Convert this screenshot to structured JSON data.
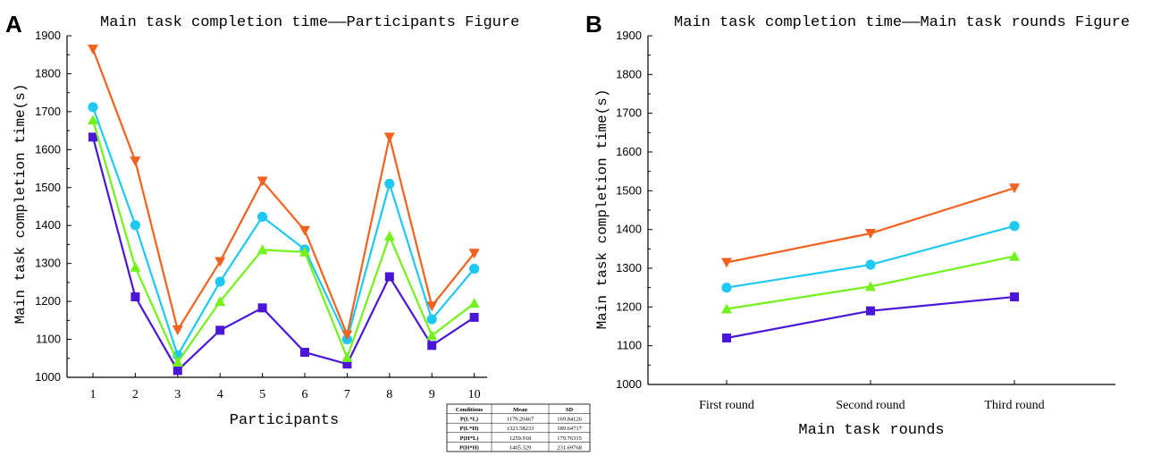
{
  "chart_data": [
    {
      "panel_letter": "A",
      "type": "line",
      "title": "Main task completion time——Participants Figure",
      "xlabel": "Participants",
      "ylabel": "Main task completion time(s)",
      "categories": [
        "1",
        "2",
        "3",
        "4",
        "5",
        "6",
        "7",
        "8",
        "9",
        "10"
      ],
      "ylim": [
        1000,
        1900
      ],
      "yticks": [
        "1000",
        "1100",
        "1200",
        "1300",
        "1400",
        "1500",
        "1600",
        "1700",
        "1800",
        "1900"
      ],
      "grid": false,
      "legend_position": "bottom",
      "series": [
        {
          "name": "P_L*L",
          "label_main": "P",
          "label_sub": "L*L",
          "color": "#4b16d8",
          "marker": "square",
          "values": [
            1633,
            1212,
            1018,
            1124,
            1183,
            1066,
            1035,
            1265,
            1084,
            1158
          ]
        },
        {
          "name": "P_L*H",
          "label_main": "P",
          "label_sub": "L*H",
          "color": "#1ec8f0",
          "marker": "circle",
          "values": [
            1712,
            1401,
            1058,
            1252,
            1423,
            1337,
            1100,
            1510,
            1153,
            1286
          ]
        },
        {
          "name": "P_H*L",
          "label_main": "P",
          "label_sub": "H*L",
          "color": "#72f21a",
          "marker": "triangle-up",
          "values": [
            1678,
            1290,
            1040,
            1200,
            1336,
            1330,
            1052,
            1372,
            1110,
            1195
          ]
        },
        {
          "name": "P_H*H",
          "label_main": "P",
          "label_sub": "H*H",
          "color": "#f2611d",
          "marker": "triangle-down",
          "values": [
            1865,
            1570,
            1125,
            1305,
            1517,
            1387,
            1112,
            1633,
            1188,
            1327
          ]
        }
      ],
      "table": {
        "headers": [
          "Conditions",
          "Mean",
          "SD"
        ],
        "rows": [
          [
            "P(L*L)",
            "1179.20467",
            "169.84126"
          ],
          [
            "P(L*H)",
            "1323.58233",
            "189.64717"
          ],
          [
            "P(H*L)",
            "1259.918",
            "179.76315"
          ],
          [
            "P(H*H)",
            "1405.329",
            "231.69768"
          ]
        ]
      }
    },
    {
      "panel_letter": "B",
      "type": "line",
      "title": "Main task completion time——Main task rounds Figure",
      "xlabel": "Main task rounds",
      "ylabel": "Main task completion time(s)",
      "categories": [
        "First round",
        "Second round",
        "Third round"
      ],
      "ylim": [
        1000,
        1900
      ],
      "yticks": [
        "1000",
        "1100",
        "1200",
        "1300",
        "1400",
        "1500",
        "1600",
        "1700",
        "1800",
        "1900"
      ],
      "grid": false,
      "legend_position": "bottom",
      "series": [
        {
          "name": "P_L*L",
          "label_main": "P",
          "label_sub": "L*L",
          "color": "#4b16d8",
          "marker": "square",
          "values": [
            1120,
            1190,
            1226
          ]
        },
        {
          "name": "P_L*H",
          "label_main": "P",
          "label_sub": "L*H",
          "color": "#1ec8f0",
          "marker": "circle",
          "values": [
            1250,
            1309,
            1409
          ]
        },
        {
          "name": "P_H*L",
          "label_main": "P",
          "label_sub": "H*L",
          "color": "#72f21a",
          "marker": "triangle-up",
          "values": [
            1195,
            1253,
            1331
          ]
        },
        {
          "name": "P_H*H",
          "label_main": "P",
          "label_sub": "H*H",
          "color": "#f2611d",
          "marker": "triangle-down",
          "values": [
            1315,
            1390,
            1507
          ]
        }
      ]
    }
  ]
}
